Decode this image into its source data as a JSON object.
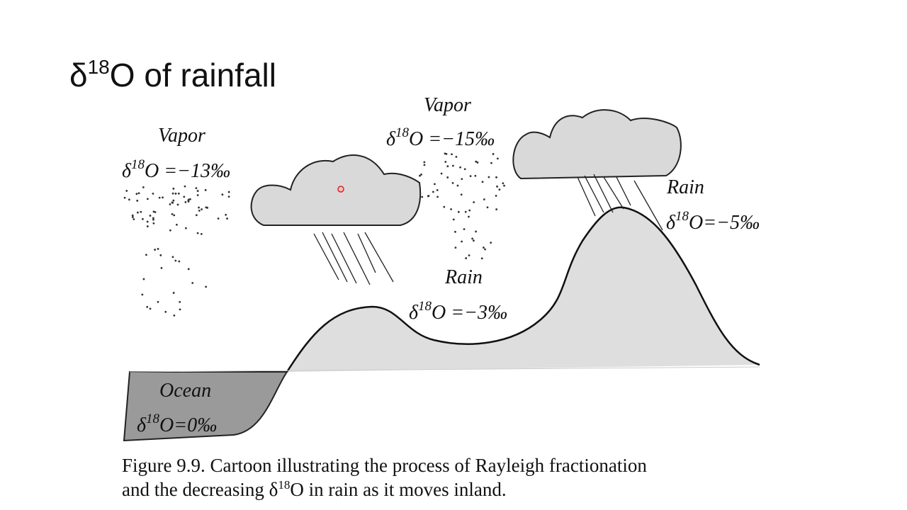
{
  "title": {
    "delta": "δ",
    "sup": "18",
    "text": "O of rainfall"
  },
  "labels": [
    {
      "heading": "Vapor",
      "delta": "δ",
      "sup": "18",
      "value": "O =−13‰"
    },
    {
      "heading": "Vapor",
      "delta": "δ",
      "sup": "18",
      "value": "O =−15‰"
    },
    {
      "heading": "Rain",
      "delta": "δ",
      "sup": "18",
      "value": "O =−3‰"
    },
    {
      "heading": "Rain",
      "delta": "δ",
      "sup": "18",
      "value": "O=−5‰"
    },
    {
      "heading": "Ocean",
      "delta": "δ",
      "sup": "18",
      "value": "O=0‰"
    }
  ],
  "caption": {
    "line1": "Figure 9.9.  Cartoon illustrating the process of Rayleigh fractionation",
    "line2_start": "and the decreasing δ",
    "line2_sup": "18",
    "line2_end": "O in rain as it moves inland."
  }
}
